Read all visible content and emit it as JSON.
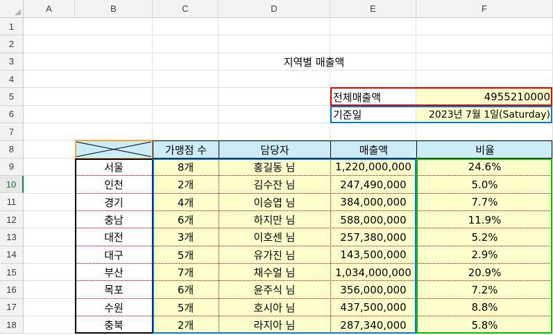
{
  "columns": [
    "A",
    "B",
    "C",
    "D",
    "E",
    "F"
  ],
  "rows": [
    "1",
    "2",
    "3",
    "4",
    "5",
    "6",
    "7",
    "8",
    "9",
    "10",
    "11",
    "12",
    "13",
    "14",
    "15",
    "16",
    "17",
    "18"
  ],
  "selected_row": "10",
  "title": "지역별 매출액",
  "summary": {
    "total_label": "전체매출액",
    "total_value": "4955210000",
    "date_label": "기준일",
    "date_value": "2023년 7월 1일(Saturday)"
  },
  "table": {
    "headers": [
      "가맹점 수",
      "담당자",
      "매출액",
      "비율"
    ],
    "rows": [
      {
        "region": "서울",
        "stores": "8개",
        "manager": "홍길동 님",
        "sales": "1,220,000,000",
        "ratio": "24.6%"
      },
      {
        "region": "인천",
        "stores": "2개",
        "manager": "김수잔 님",
        "sales": "247,490,000",
        "ratio": "5.0%"
      },
      {
        "region": "경기",
        "stores": "4개",
        "manager": "이승엽 님",
        "sales": "384,000,000",
        "ratio": "7.7%"
      },
      {
        "region": "충남",
        "stores": "6개",
        "manager": "하지만 님",
        "sales": "588,000,000",
        "ratio": "11.9%"
      },
      {
        "region": "대전",
        "stores": "3개",
        "manager": "이호센 님",
        "sales": "257,380,000",
        "ratio": "5.2%"
      },
      {
        "region": "대구",
        "stores": "5개",
        "manager": "유가진 님",
        "sales": "143,500,000",
        "ratio": "2.9%"
      },
      {
        "region": "부산",
        "stores": "7개",
        "manager": "채수얼 님",
        "sales": "1,034,000,000",
        "ratio": "20.9%"
      },
      {
        "region": "목포",
        "stores": "6개",
        "manager": "윤주식 님",
        "sales": "356,000,000",
        "ratio": "7.2%"
      },
      {
        "region": "수원",
        "stores": "5개",
        "manager": "호시아 님",
        "sales": "437,500,000",
        "ratio": "8.8%"
      },
      {
        "region": "충북",
        "stores": "2개",
        "manager": "라지아 님",
        "sales": "287,340,000",
        "ratio": "5.8%"
      }
    ]
  },
  "colors": {
    "selection_green": "#107c41",
    "header_fill": "#ccecf8",
    "data_fill": "#ffffcc",
    "total_border": "#e00000",
    "date_border": "#0078d4",
    "table_blue_border": "#0078d4",
    "ratio_border": "#00c000",
    "header_box_orange": "#f4a640",
    "dotted_rule": "#c00000"
  }
}
